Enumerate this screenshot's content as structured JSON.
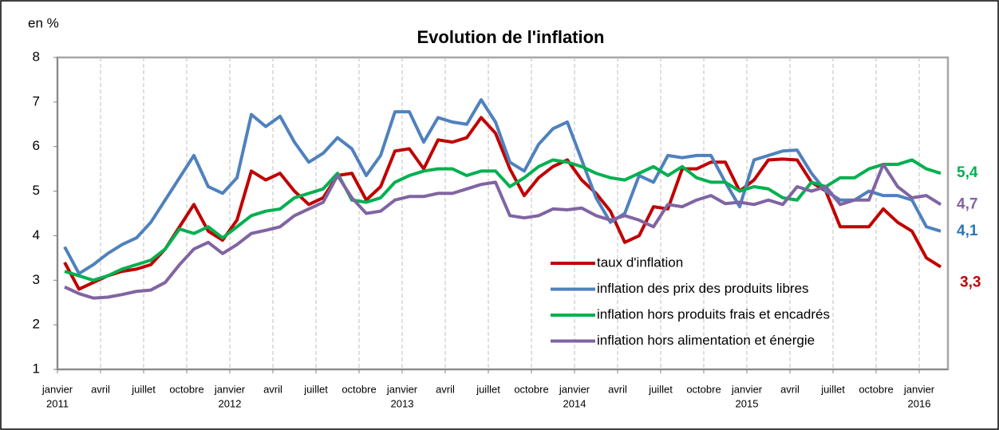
{
  "chart_data": {
    "type": "line",
    "title": "Evolution de l'inflation",
    "y_label": "en %",
    "categories": [
      "janvier",
      null,
      null,
      "avril",
      null,
      null,
      "juillet",
      null,
      null,
      "octobre",
      null,
      null,
      "janvier",
      null,
      null,
      "avril",
      null,
      null,
      "juillet",
      null,
      null,
      "octobre",
      null,
      null,
      "janvier",
      null,
      null,
      "avril",
      null,
      null,
      "juillet",
      null,
      null,
      "octobre",
      null,
      null,
      "janvier",
      null,
      null,
      "avril",
      null,
      null,
      "juillet",
      null,
      null,
      "octobre",
      null,
      null,
      "janvier",
      null,
      null,
      "avril",
      null,
      null,
      "juillet",
      null,
      null,
      "octobre",
      null,
      null,
      "janvier",
      null
    ],
    "years": [
      "2011",
      null,
      null,
      null,
      null,
      null,
      null,
      null,
      null,
      null,
      null,
      null,
      "2012",
      null,
      null,
      null,
      null,
      null,
      null,
      null,
      null,
      null,
      null,
      null,
      "2013",
      null,
      null,
      null,
      null,
      null,
      null,
      null,
      null,
      null,
      null,
      null,
      "2014",
      null,
      null,
      null,
      null,
      null,
      null,
      null,
      null,
      null,
      null,
      null,
      "2015",
      null,
      null,
      null,
      null,
      null,
      null,
      null,
      null,
      null,
      null,
      null,
      "2016",
      null
    ],
    "ylim": [
      1,
      8
    ],
    "yticks": [
      1,
      2,
      3,
      4,
      5,
      6,
      7,
      8
    ],
    "x_grid": true,
    "legend": "lower-right",
    "series": [
      {
        "name": "taux d'inflation",
        "color": "#c00000",
        "end_label": "3,3",
        "values": [
          3.4,
          2.8,
          2.95,
          3.1,
          3.2,
          3.25,
          3.35,
          3.7,
          4.2,
          4.7,
          4.1,
          3.9,
          4.35,
          5.45,
          5.25,
          5.4,
          5.0,
          4.7,
          4.85,
          5.35,
          5.4,
          4.8,
          5.1,
          5.9,
          5.95,
          5.5,
          6.15,
          6.1,
          6.2,
          6.65,
          6.3,
          5.5,
          4.9,
          5.3,
          5.55,
          5.7,
          5.25,
          4.95,
          4.55,
          3.85,
          4.0,
          4.65,
          4.6,
          5.5,
          5.5,
          5.65,
          5.65,
          5.0,
          5.25,
          5.7,
          5.72,
          5.7,
          5.2,
          5.0,
          4.2,
          4.2,
          4.2,
          4.6,
          4.3,
          4.1,
          3.5,
          3.3
        ]
      },
      {
        "name": "inflation des prix des produits libres",
        "color": "#4f81bd",
        "end_label": "4,1",
        "values": [
          3.75,
          3.15,
          3.35,
          3.6,
          3.8,
          3.95,
          4.3,
          4.8,
          5.3,
          5.8,
          5.1,
          4.95,
          5.3,
          6.72,
          6.45,
          6.68,
          6.1,
          5.65,
          5.85,
          6.2,
          5.95,
          5.35,
          5.8,
          6.78,
          6.78,
          6.1,
          6.65,
          6.55,
          6.5,
          7.05,
          6.55,
          5.65,
          5.45,
          6.05,
          6.4,
          6.55,
          5.7,
          4.85,
          4.3,
          4.5,
          5.35,
          5.2,
          5.8,
          5.75,
          5.8,
          5.8,
          5.2,
          4.65,
          5.7,
          5.8,
          5.9,
          5.92,
          5.4,
          5.0,
          4.8,
          4.8,
          5.0,
          4.9,
          4.9,
          4.8,
          4.2,
          4.1
        ]
      },
      {
        "name": "inflation hors produits frais et encadrés",
        "color": "#00b050",
        "end_label": "5,4",
        "values": [
          3.2,
          3.1,
          3.0,
          3.1,
          3.25,
          3.35,
          3.45,
          3.7,
          4.15,
          4.05,
          4.2,
          3.95,
          4.2,
          4.45,
          4.55,
          4.6,
          4.85,
          4.95,
          5.05,
          5.4,
          4.8,
          4.75,
          4.85,
          5.2,
          5.35,
          5.45,
          5.5,
          5.5,
          5.35,
          5.45,
          5.45,
          5.1,
          5.3,
          5.55,
          5.7,
          5.65,
          5.55,
          5.4,
          5.3,
          5.25,
          5.4,
          5.55,
          5.35,
          5.55,
          5.3,
          5.2,
          5.2,
          5.0,
          5.1,
          5.05,
          4.85,
          4.8,
          5.2,
          5.1,
          5.3,
          5.3,
          5.5,
          5.6,
          5.6,
          5.7,
          5.5,
          5.4
        ]
      },
      {
        "name": "inflation hors alimentation et énergie",
        "color": "#8064a2",
        "end_label": "4,7",
        "values": [
          2.85,
          2.7,
          2.6,
          2.62,
          2.68,
          2.75,
          2.78,
          2.95,
          3.35,
          3.7,
          3.85,
          3.6,
          3.8,
          4.05,
          4.12,
          4.2,
          4.45,
          4.6,
          4.75,
          5.35,
          4.85,
          4.5,
          4.55,
          4.8,
          4.88,
          4.88,
          4.95,
          4.95,
          5.05,
          5.15,
          5.2,
          4.45,
          4.4,
          4.45,
          4.6,
          4.58,
          4.62,
          4.45,
          4.35,
          4.45,
          4.35,
          4.2,
          4.7,
          4.65,
          4.8,
          4.9,
          4.72,
          4.75,
          4.7,
          4.8,
          4.7,
          5.1,
          5.0,
          5.1,
          4.7,
          4.8,
          4.8,
          5.6,
          5.1,
          4.85,
          4.9,
          4.7
        ]
      }
    ]
  }
}
